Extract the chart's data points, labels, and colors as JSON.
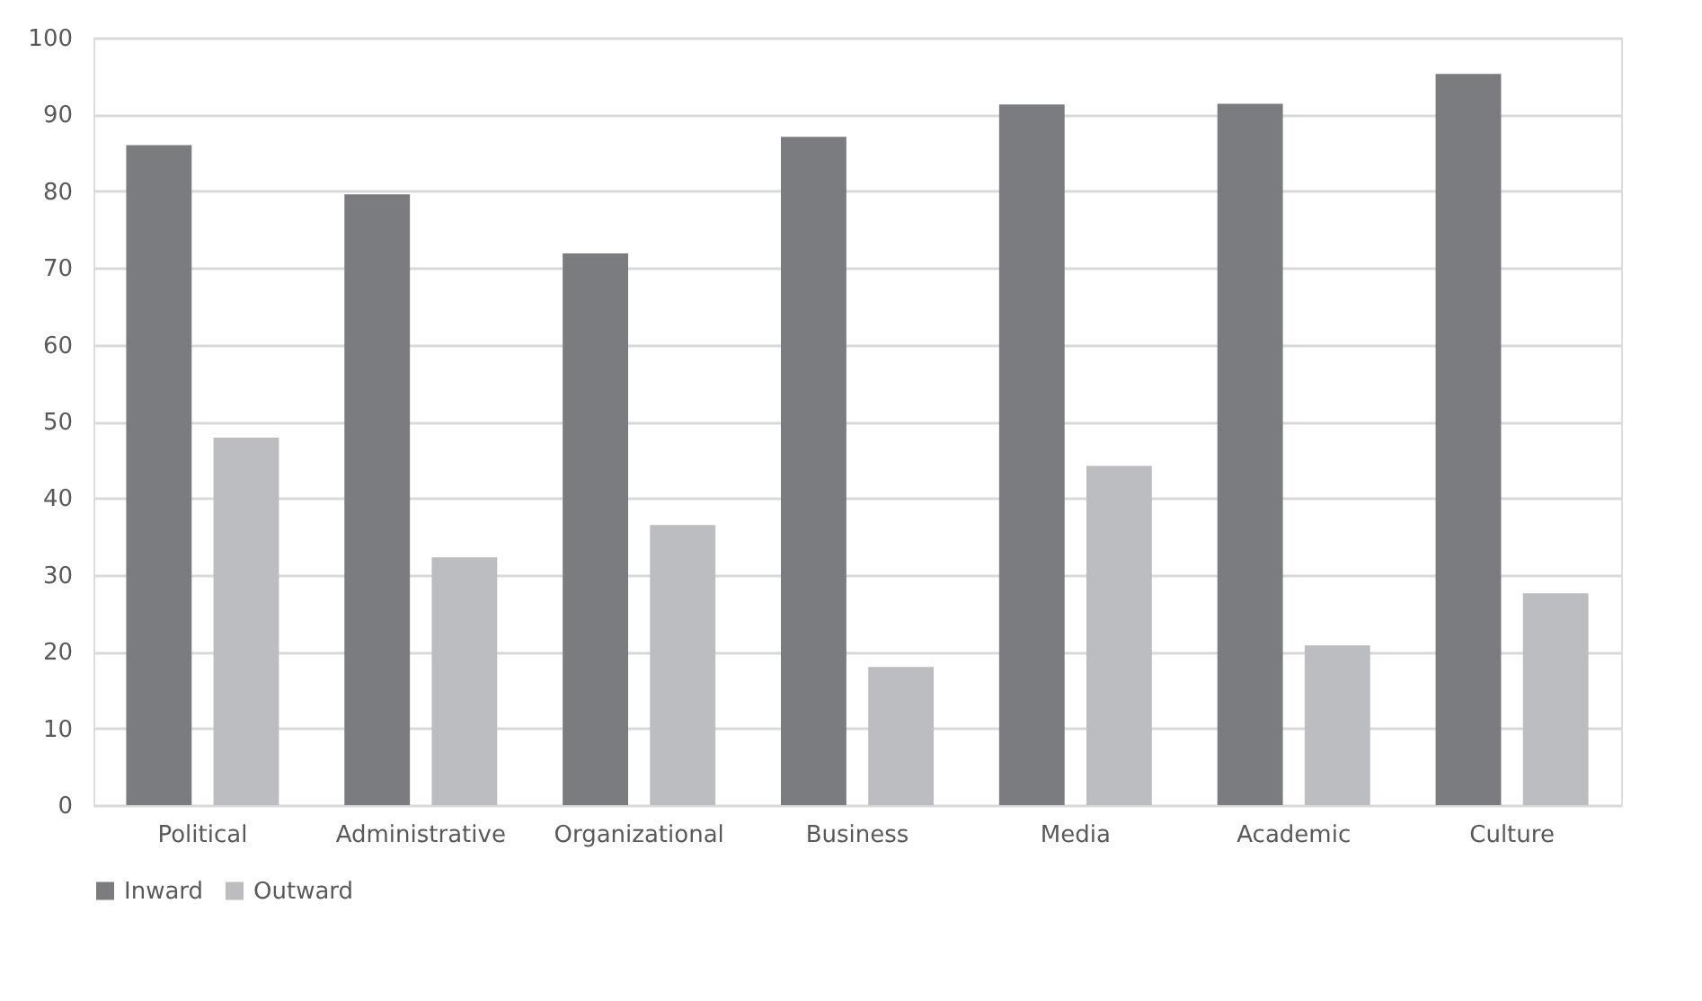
{
  "chart_data": {
    "type": "bar",
    "categories": [
      "Political",
      "Administrative",
      "Organizational",
      "Business",
      "Media",
      "Academic",
      "Culture"
    ],
    "series": [
      {
        "name": "Inward",
        "color": "#7b7c80",
        "values": [
          86.0,
          79.6,
          71.9,
          87.1,
          91.3,
          91.4,
          95.3
        ]
      },
      {
        "name": "Outward",
        "color": "#bcbdc1",
        "values": [
          47.9,
          32.3,
          36.5,
          18.0,
          44.2,
          20.8,
          27.6
        ]
      }
    ],
    "ylim": [
      0,
      100
    ],
    "yticks": [
      0,
      10,
      20,
      30,
      40,
      50,
      60,
      70,
      80,
      90,
      100
    ],
    "grid": "y",
    "legend": "bottom"
  }
}
